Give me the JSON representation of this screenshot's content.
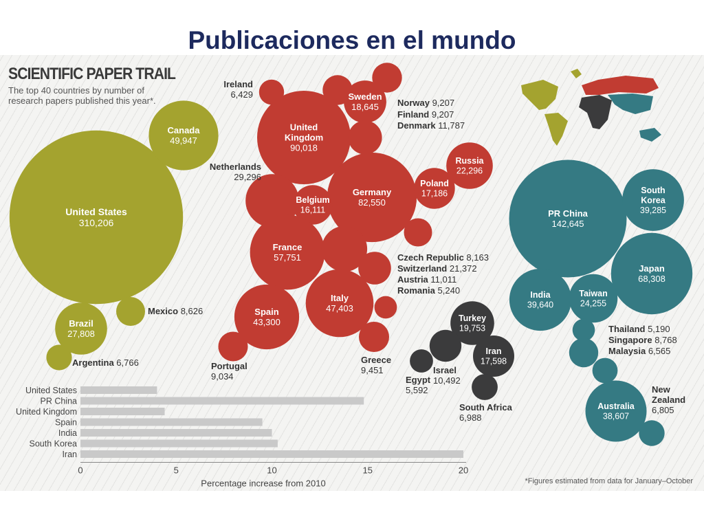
{
  "page": {
    "title": "Publicaciones en el mundo"
  },
  "infographic": {
    "title": "SCIENTIFIC PAPER TRAIL",
    "subtitle": "The top 40 countries by number of research papers published this year*.",
    "footnote": "*Figures estimated from data for January–October"
  },
  "colors": {
    "americas": "#a4a32f",
    "europe": "#c13c32",
    "middle_east_africa": "#3b3b3c",
    "asia_pacific": "#357a83",
    "bar": "#c9c9c9"
  },
  "chart_data": [
    {
      "type": "bubble",
      "value_label": "number of research papers",
      "groups": [
        {
          "name": "Americas",
          "color": "#a4a32f",
          "countries": [
            {
              "name": "United States",
              "value": 310206,
              "display": "310,206"
            },
            {
              "name": "Canada",
              "value": 49947,
              "display": "49,947"
            },
            {
              "name": "Brazil",
              "value": 27808,
              "display": "27,808"
            },
            {
              "name": "Mexico",
              "value": 8626,
              "display": "8,626"
            },
            {
              "name": "Argentina",
              "value": 6766,
              "display": "6,766"
            }
          ]
        },
        {
          "name": "Europe",
          "color": "#c13c32",
          "countries": [
            {
              "name": "Ireland",
              "value": 6429,
              "display": "6,429"
            },
            {
              "name": "United Kingdom",
              "value": 90018,
              "display": "90,018"
            },
            {
              "name": "Sweden",
              "value": 18645,
              "display": "18,645"
            },
            {
              "name": "Norway",
              "value": 9207,
              "display": "9,207"
            },
            {
              "name": "Finland",
              "value": 9207,
              "display": "9,207"
            },
            {
              "name": "Denmark",
              "value": 11787,
              "display": "11,787"
            },
            {
              "name": "Netherlands",
              "value": 29296,
              "display": "29,296"
            },
            {
              "name": "Russia",
              "value": 22296,
              "display": "22,296"
            },
            {
              "name": "Germany",
              "value": 82550,
              "display": "82,550"
            },
            {
              "name": "Poland",
              "value": 17186,
              "display": "17,186"
            },
            {
              "name": "Belgium",
              "value": 16111,
              "display": "16,111"
            },
            {
              "name": "France",
              "value": 57751,
              "display": "57,751"
            },
            {
              "name": "Czech Republic",
              "value": 8163,
              "display": "8,163"
            },
            {
              "name": "Switzerland",
              "value": 21372,
              "display": "21,372"
            },
            {
              "name": "Austria",
              "value": 11011,
              "display": "11,011"
            },
            {
              "name": "Romania",
              "value": 5240,
              "display": "5,240"
            },
            {
              "name": "Italy",
              "value": 47403,
              "display": "47,403"
            },
            {
              "name": "Spain",
              "value": 43300,
              "display": "43,300"
            },
            {
              "name": "Portugal",
              "value": 9034,
              "display": "9,034"
            },
            {
              "name": "Greece",
              "value": 9451,
              "display": "9,451"
            }
          ]
        },
        {
          "name": "Middle East & Africa",
          "color": "#3b3b3c",
          "countries": [
            {
              "name": "Turkey",
              "value": 19753,
              "display": "19,753"
            },
            {
              "name": "Iran",
              "value": 17598,
              "display": "17,598"
            },
            {
              "name": "Israel",
              "value": 10492,
              "display": "10,492"
            },
            {
              "name": "Egypt",
              "value": 5592,
              "display": "5,592"
            },
            {
              "name": "South Africa",
              "value": 6988,
              "display": "6,988"
            }
          ]
        },
        {
          "name": "Asia-Pacific",
          "color": "#357a83",
          "countries": [
            {
              "name": "PR China",
              "value": 142645,
              "display": "142,645"
            },
            {
              "name": "South Korea",
              "value": 39285,
              "display": "39,285"
            },
            {
              "name": "Japan",
              "value": 68308,
              "display": "68,308"
            },
            {
              "name": "India",
              "value": 39640,
              "display": "39,640"
            },
            {
              "name": "Taiwan",
              "value": 24255,
              "display": "24,255"
            },
            {
              "name": "Thailand",
              "value": 5190,
              "display": "5,190"
            },
            {
              "name": "Singapore",
              "value": 8768,
              "display": "8,768"
            },
            {
              "name": "Malaysia",
              "value": 6565,
              "display": "6,565"
            },
            {
              "name": "Australia",
              "value": 38607,
              "display": "38,607"
            },
            {
              "name": "New Zealand",
              "value": 6805,
              "display": "6,805"
            }
          ]
        }
      ]
    },
    {
      "type": "bar",
      "orientation": "horizontal",
      "categories": [
        "United States",
        "PR China",
        "United Kingdom",
        "Spain",
        "India",
        "South Korea",
        "Iran"
      ],
      "values": [
        4.0,
        14.8,
        4.4,
        9.5,
        10.0,
        10.3,
        20.0
      ],
      "xlabel": "Percentage increase from 2010",
      "xlim": [
        0,
        20
      ],
      "xticks": [
        0,
        5,
        10,
        15,
        20
      ]
    }
  ]
}
